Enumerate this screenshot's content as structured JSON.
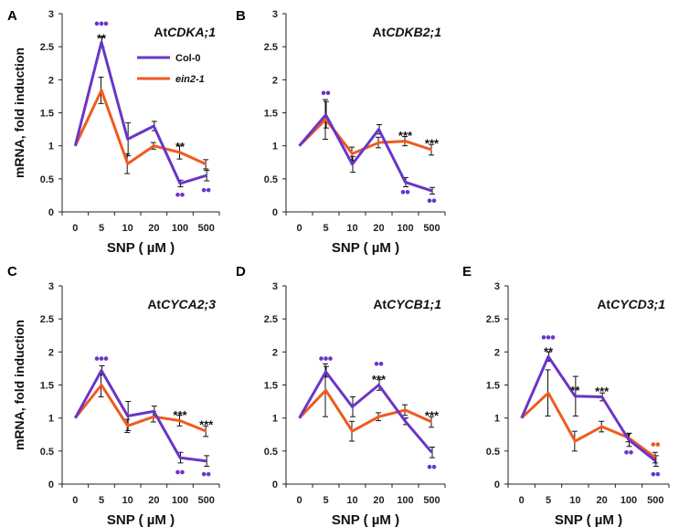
{
  "chart_data": [
    {
      "panel_label": "A",
      "type": "line",
      "title_prefix": "At",
      "title_gene": "CDKA;1",
      "ylabel": "mRNA, fold induction",
      "xlabel": "SNP ( µM )",
      "categories": [
        "0",
        "5",
        "10",
        "20",
        "100",
        "500"
      ],
      "yticks": [
        "0",
        "0.5",
        "1",
        "1.5",
        "2",
        "2.5",
        "3"
      ],
      "ylim": [
        0,
        3
      ],
      "legend": [
        "Col-0",
        "ein2-1"
      ],
      "series": [
        {
          "name": "Col-0",
          "color": "#6a35c8",
          "values": [
            1.0,
            2.57,
            1.1,
            1.3,
            0.43,
            0.55
          ],
          "errors": [
            0,
            0.08,
            0.25,
            0.07,
            0.05,
            0.08
          ]
        },
        {
          "name": "ein2-1",
          "color": "#f05a1f",
          "values": [
            1.0,
            1.84,
            0.73,
            1.0,
            0.9,
            0.72
          ],
          "errors": [
            0,
            0.2,
            0.15,
            0.05,
            0.1,
            0.07
          ]
        }
      ],
      "stars": [
        {
          "index": 1,
          "text": "**",
          "value": 2.66
        },
        {
          "index": 4,
          "text": "**",
          "value": 1.02
        }
      ],
      "dots": [
        {
          "index": 1,
          "count": 3,
          "color": "#6a35c8",
          "pos": "above",
          "value": 2.85
        },
        {
          "index": 4,
          "count": 2,
          "color": "#6a35c8",
          "pos": "below",
          "value": 0.26
        },
        {
          "index": 5,
          "count": 2,
          "color": "#6a35c8",
          "pos": "below",
          "value": 0.33
        }
      ]
    },
    {
      "panel_label": "B",
      "type": "line",
      "title_prefix": "At",
      "title_gene": "CDKB2;1",
      "ylabel": "",
      "xlabel": "SNP ( µM )",
      "categories": [
        "0",
        "5",
        "10",
        "20",
        "100",
        "500"
      ],
      "yticks": [
        "0",
        "0.5",
        "1",
        "1.5",
        "2",
        "2.5",
        "3"
      ],
      "ylim": [
        0,
        3
      ],
      "legend": [],
      "series": [
        {
          "name": "Col-0",
          "color": "#6a35c8",
          "values": [
            1.0,
            1.47,
            0.72,
            1.25,
            0.45,
            0.32
          ],
          "errors": [
            0,
            0.2,
            0.12,
            0.07,
            0.07,
            0.05
          ]
        },
        {
          "name": "ein2-1",
          "color": "#f05a1f",
          "values": [
            1.0,
            1.4,
            0.88,
            1.05,
            1.07,
            0.94
          ],
          "errors": [
            0,
            0.3,
            0.1,
            0.08,
            0.07,
            0.08
          ]
        }
      ],
      "stars": [
        {
          "index": 4,
          "text": "***",
          "value": 1.19
        },
        {
          "index": 5,
          "text": "***",
          "value": 1.07
        }
      ],
      "dots": [
        {
          "index": 1,
          "count": 2,
          "color": "#6a35c8",
          "pos": "above",
          "value": 1.8
        },
        {
          "index": 4,
          "count": 2,
          "color": "#6a35c8",
          "pos": "below",
          "value": 0.3
        },
        {
          "index": 5,
          "count": 2,
          "color": "#6a35c8",
          "pos": "below",
          "value": 0.17
        }
      ]
    },
    {
      "panel_label": "C",
      "type": "line",
      "title_prefix": "At",
      "title_gene": "CYCA2;3",
      "ylabel": "mRNA, fold induction",
      "xlabel": "SNP ( µM )",
      "categories": [
        "0",
        "5",
        "10",
        "20",
        "100",
        "500"
      ],
      "yticks": [
        "0",
        "0.5",
        "1",
        "1.5",
        "2",
        "2.5",
        "3"
      ],
      "ylim": [
        0,
        3
      ],
      "legend": [],
      "series": [
        {
          "name": "Col-0",
          "color": "#6a35c8",
          "values": [
            1.0,
            1.72,
            1.03,
            1.1,
            0.4,
            0.35
          ],
          "errors": [
            0,
            0.07,
            0.22,
            0.08,
            0.08,
            0.08
          ]
        },
        {
          "name": "ein2-1",
          "color": "#f05a1f",
          "values": [
            1.0,
            1.5,
            0.88,
            1.02,
            0.96,
            0.8
          ],
          "errors": [
            0,
            0.18,
            0.1,
            0.08,
            0.08,
            0.08
          ]
        }
      ],
      "stars": [
        {
          "index": 4,
          "text": "***",
          "value": 1.08
        },
        {
          "index": 5,
          "text": "***",
          "value": 0.93
        }
      ],
      "dots": [
        {
          "index": 1,
          "count": 3,
          "color": "#6a35c8",
          "pos": "above",
          "value": 1.9
        },
        {
          "index": 4,
          "count": 2,
          "color": "#6a35c8",
          "pos": "below",
          "value": 0.18
        },
        {
          "index": 5,
          "count": 2,
          "color": "#6a35c8",
          "pos": "below",
          "value": 0.15
        }
      ]
    },
    {
      "panel_label": "D",
      "type": "line",
      "title_prefix": "At",
      "title_gene": "CYCB1;1",
      "ylabel": "",
      "xlabel": "SNP ( µM )",
      "categories": [
        "0",
        "5",
        "10",
        "20",
        "100",
        "500"
      ],
      "yticks": [
        "0",
        "0.5",
        "1",
        "1.5",
        "2",
        "2.5",
        "3"
      ],
      "ylim": [
        0,
        3
      ],
      "legend": [],
      "series": [
        {
          "name": "Col-0",
          "color": "#6a35c8",
          "values": [
            1.0,
            1.7,
            1.17,
            1.5,
            0.95,
            0.48
          ],
          "errors": [
            0,
            0.08,
            0.15,
            0.08,
            0.05,
            0.08
          ]
        },
        {
          "name": "ein2-1",
          "color": "#f05a1f",
          "values": [
            1.0,
            1.42,
            0.8,
            1.02,
            1.12,
            0.94
          ],
          "errors": [
            0,
            0.4,
            0.15,
            0.06,
            0.08,
            0.08
          ]
        }
      ],
      "stars": [
        {
          "index": 3,
          "text": "***",
          "value": 1.62
        },
        {
          "index": 5,
          "text": "***",
          "value": 1.07
        }
      ],
      "dots": [
        {
          "index": 1,
          "count": 3,
          "color": "#6a35c8",
          "pos": "above",
          "value": 1.9
        },
        {
          "index": 3,
          "count": 2,
          "color": "#6a35c8",
          "pos": "above",
          "value": 1.82
        },
        {
          "index": 5,
          "count": 2,
          "color": "#6a35c8",
          "pos": "below",
          "value": 0.26
        }
      ]
    },
    {
      "panel_label": "E",
      "type": "line",
      "title_prefix": "At",
      "title_gene": "CYCD3;1",
      "ylabel": "",
      "xlabel": "SNP ( µM )",
      "categories": [
        "0",
        "5",
        "10",
        "20",
        "100",
        "500"
      ],
      "yticks": [
        "0",
        "0.5",
        "1",
        "1.5",
        "2",
        "2.5",
        "3"
      ],
      "ylim": [
        0,
        3
      ],
      "legend": [],
      "series": [
        {
          "name": "Col-0",
          "color": "#6a35c8",
          "values": [
            1.0,
            1.93,
            1.33,
            1.32,
            0.67,
            0.35
          ],
          "errors": [
            0,
            0.07,
            0.3,
            0.06,
            0.1,
            0.08
          ]
        },
        {
          "name": "ein2-1",
          "color": "#f05a1f",
          "values": [
            1.0,
            1.38,
            0.65,
            0.87,
            0.7,
            0.4
          ],
          "errors": [
            0,
            0.35,
            0.15,
            0.08,
            0.06,
            0.08
          ]
        }
      ],
      "stars": [
        {
          "index": 1,
          "text": "**",
          "value": 2.04
        },
        {
          "index": 2,
          "text": "**",
          "value": 1.45
        },
        {
          "index": 3,
          "text": "***",
          "value": 1.44
        }
      ],
      "dots": [
        {
          "index": 1,
          "count": 3,
          "color": "#6a35c8",
          "pos": "above",
          "value": 2.22
        },
        {
          "index": 4,
          "count": 2,
          "color": "#6a35c8",
          "pos": "below",
          "value": 0.48
        },
        {
          "index": 5,
          "count": 2,
          "color": "#f05a1f",
          "pos": "above",
          "value": 0.6
        },
        {
          "index": 5,
          "count": 2,
          "color": "#6a35c8",
          "pos": "below",
          "value": 0.15
        }
      ]
    }
  ]
}
